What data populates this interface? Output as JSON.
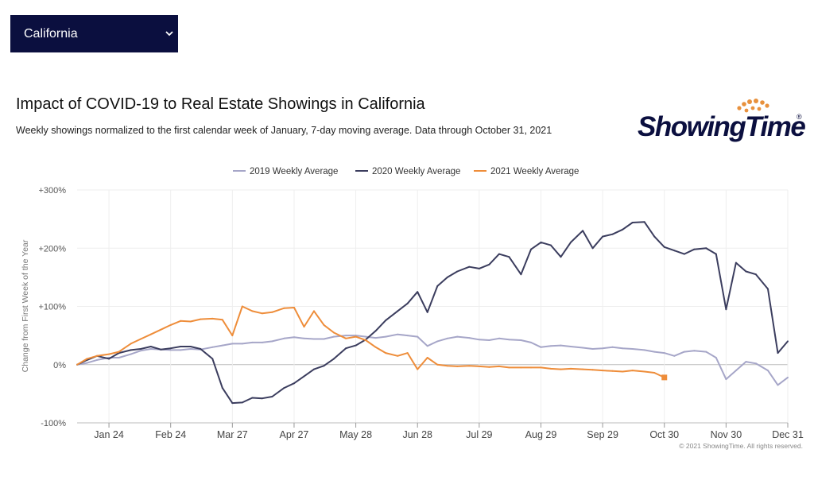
{
  "region_selector": {
    "selected": "California"
  },
  "header": {
    "title": "Impact of COVID-19 to Real Estate Showings in California",
    "subtitle": "Weekly showings normalized to the first calendar week of January, 7-day moving average. Data through October 31, 2021"
  },
  "logo": {
    "text": "ShowingTime",
    "registered": "®"
  },
  "copyright": "© 2021 ShowingTime. All rights reserved.",
  "colors": {
    "series_2019": "#a6a6c8",
    "series_2020": "#3b3d5e",
    "series_2021": "#ee8d3a",
    "selector_bg": "#0b0f3f",
    "logo_dots": "#e8913d"
  },
  "chart_data": {
    "type": "line",
    "xlabel": "",
    "ylabel": "Change from First Week of the Year",
    "x_domain": [
      "2021-01-08",
      "2021-12-31"
    ],
    "ylim": [
      -100,
      300
    ],
    "y_ticks": [
      -100,
      0,
      100,
      200,
      300
    ],
    "y_tick_labels": [
      "-100%",
      "0%",
      "+100%",
      "+200%",
      "+300%"
    ],
    "x_ticks": [
      "2021-01-24",
      "2021-02-24",
      "2021-03-27",
      "2021-04-27",
      "2021-05-28",
      "2021-06-28",
      "2021-07-29",
      "2021-08-29",
      "2021-09-29",
      "2021-10-30",
      "2021-11-30",
      "2021-12-31"
    ],
    "x_tick_labels": [
      "Jan 24",
      "Feb 24",
      "Mar 27",
      "Apr 27",
      "May 28",
      "Jun 28",
      "Jul 29",
      "Aug 29",
      "Sep 29",
      "Oct 30",
      "Nov 30",
      "Dec 31"
    ],
    "grid": "vertical",
    "legend_position": "top-center",
    "series": [
      {
        "name": "2019 Weekly Average",
        "color": "#a6a6c8",
        "points": [
          [
            "2021-01-08",
            0
          ],
          [
            "2021-01-13",
            3
          ],
          [
            "2021-01-18",
            8
          ],
          [
            "2021-01-24",
            12
          ],
          [
            "2021-01-29",
            12
          ],
          [
            "2021-02-04",
            18
          ],
          [
            "2021-02-09",
            24
          ],
          [
            "2021-02-14",
            27
          ],
          [
            "2021-02-19",
            26
          ],
          [
            "2021-02-24",
            25
          ],
          [
            "2021-03-01",
            25
          ],
          [
            "2021-03-06",
            27
          ],
          [
            "2021-03-11",
            26
          ],
          [
            "2021-03-17",
            30
          ],
          [
            "2021-03-22",
            33
          ],
          [
            "2021-03-27",
            36
          ],
          [
            "2021-04-01",
            36
          ],
          [
            "2021-04-06",
            38
          ],
          [
            "2021-04-11",
            38
          ],
          [
            "2021-04-16",
            40
          ],
          [
            "2021-04-22",
            45
          ],
          [
            "2021-04-27",
            47
          ],
          [
            "2021-05-02",
            45
          ],
          [
            "2021-05-07",
            44
          ],
          [
            "2021-05-12",
            44
          ],
          [
            "2021-05-17",
            48
          ],
          [
            "2021-05-23",
            50
          ],
          [
            "2021-05-28",
            50
          ],
          [
            "2021-06-02",
            48
          ],
          [
            "2021-06-07",
            46
          ],
          [
            "2021-06-12",
            48
          ],
          [
            "2021-06-18",
            52
          ],
          [
            "2021-06-23",
            50
          ],
          [
            "2021-06-28",
            48
          ],
          [
            "2021-07-03",
            32
          ],
          [
            "2021-07-08",
            40
          ],
          [
            "2021-07-13",
            45
          ],
          [
            "2021-07-18",
            48
          ],
          [
            "2021-07-24",
            46
          ],
          [
            "2021-07-29",
            43
          ],
          [
            "2021-08-03",
            42
          ],
          [
            "2021-08-08",
            45
          ],
          [
            "2021-08-13",
            43
          ],
          [
            "2021-08-19",
            42
          ],
          [
            "2021-08-24",
            38
          ],
          [
            "2021-08-29",
            30
          ],
          [
            "2021-09-03",
            32
          ],
          [
            "2021-09-08",
            33
          ],
          [
            "2021-09-13",
            31
          ],
          [
            "2021-09-19",
            29
          ],
          [
            "2021-09-24",
            27
          ],
          [
            "2021-09-29",
            28
          ],
          [
            "2021-10-04",
            30
          ],
          [
            "2021-10-09",
            28
          ],
          [
            "2021-10-14",
            27
          ],
          [
            "2021-10-20",
            25
          ],
          [
            "2021-10-25",
            22
          ],
          [
            "2021-10-30",
            20
          ],
          [
            "2021-11-04",
            15
          ],
          [
            "2021-11-09",
            22
          ],
          [
            "2021-11-14",
            24
          ],
          [
            "2021-11-20",
            22
          ],
          [
            "2021-11-25",
            12
          ],
          [
            "2021-11-30",
            -25
          ],
          [
            "2021-12-05",
            -10
          ],
          [
            "2021-12-10",
            5
          ],
          [
            "2021-12-15",
            2
          ],
          [
            "2021-12-21",
            -10
          ],
          [
            "2021-12-26",
            -35
          ],
          [
            "2021-12-31",
            -22
          ]
        ]
      },
      {
        "name": "2020 Weekly Average",
        "color": "#3b3d5e",
        "points": [
          [
            "2021-01-08",
            0
          ],
          [
            "2021-01-13",
            8
          ],
          [
            "2021-01-18",
            15
          ],
          [
            "2021-01-24",
            10
          ],
          [
            "2021-01-29",
            20
          ],
          [
            "2021-02-04",
            25
          ],
          [
            "2021-02-09",
            27
          ],
          [
            "2021-02-14",
            31
          ],
          [
            "2021-02-19",
            26
          ],
          [
            "2021-02-24",
            28
          ],
          [
            "2021-03-01",
            31
          ],
          [
            "2021-03-06",
            31
          ],
          [
            "2021-03-11",
            27
          ],
          [
            "2021-03-17",
            10
          ],
          [
            "2021-03-22",
            -40
          ],
          [
            "2021-03-27",
            -66
          ],
          [
            "2021-04-01",
            -65
          ],
          [
            "2021-04-06",
            -57
          ],
          [
            "2021-04-11",
            -58
          ],
          [
            "2021-04-16",
            -55
          ],
          [
            "2021-04-22",
            -40
          ],
          [
            "2021-04-27",
            -32
          ],
          [
            "2021-05-02",
            -20
          ],
          [
            "2021-05-07",
            -8
          ],
          [
            "2021-05-12",
            -2
          ],
          [
            "2021-05-17",
            10
          ],
          [
            "2021-05-23",
            28
          ],
          [
            "2021-05-28",
            33
          ],
          [
            "2021-06-02",
            43
          ],
          [
            "2021-06-07",
            58
          ],
          [
            "2021-06-12",
            76
          ],
          [
            "2021-06-18",
            92
          ],
          [
            "2021-06-23",
            105
          ],
          [
            "2021-06-28",
            125
          ],
          [
            "2021-07-03",
            90
          ],
          [
            "2021-07-08",
            135
          ],
          [
            "2021-07-13",
            150
          ],
          [
            "2021-07-18",
            160
          ],
          [
            "2021-07-24",
            168
          ],
          [
            "2021-07-29",
            165
          ],
          [
            "2021-08-03",
            172
          ],
          [
            "2021-08-08",
            190
          ],
          [
            "2021-08-13",
            185
          ],
          [
            "2021-08-19",
            155
          ],
          [
            "2021-08-24",
            198
          ],
          [
            "2021-08-29",
            210
          ],
          [
            "2021-09-03",
            205
          ],
          [
            "2021-09-08",
            185
          ],
          [
            "2021-09-13",
            210
          ],
          [
            "2021-09-19",
            230
          ],
          [
            "2021-09-24",
            200
          ],
          [
            "2021-09-29",
            220
          ],
          [
            "2021-10-04",
            224
          ],
          [
            "2021-10-09",
            232
          ],
          [
            "2021-10-14",
            244
          ],
          [
            "2021-10-20",
            245
          ],
          [
            "2021-10-25",
            220
          ],
          [
            "2021-10-30",
            202
          ],
          [
            "2021-11-04",
            196
          ],
          [
            "2021-11-09",
            190
          ],
          [
            "2021-11-14",
            198
          ],
          [
            "2021-11-20",
            200
          ],
          [
            "2021-11-25",
            190
          ],
          [
            "2021-11-30",
            95
          ],
          [
            "2021-12-05",
            175
          ],
          [
            "2021-12-10",
            160
          ],
          [
            "2021-12-15",
            155
          ],
          [
            "2021-12-21",
            130
          ],
          [
            "2021-12-26",
            20
          ],
          [
            "2021-12-31",
            40
          ]
        ]
      },
      {
        "name": "2021 Weekly Average",
        "color": "#ee8d3a",
        "points": [
          [
            "2021-01-08",
            0
          ],
          [
            "2021-01-13",
            10
          ],
          [
            "2021-01-18",
            15
          ],
          [
            "2021-01-24",
            18
          ],
          [
            "2021-01-29",
            22
          ],
          [
            "2021-02-04",
            36
          ],
          [
            "2021-02-09",
            44
          ],
          [
            "2021-02-14",
            52
          ],
          [
            "2021-02-19",
            60
          ],
          [
            "2021-02-24",
            68
          ],
          [
            "2021-03-01",
            75
          ],
          [
            "2021-03-06",
            74
          ],
          [
            "2021-03-11",
            78
          ],
          [
            "2021-03-17",
            79
          ],
          [
            "2021-03-22",
            77
          ],
          [
            "2021-03-27",
            50
          ],
          [
            "2021-04-01",
            100
          ],
          [
            "2021-04-06",
            92
          ],
          [
            "2021-04-11",
            88
          ],
          [
            "2021-04-16",
            90
          ],
          [
            "2021-04-22",
            97
          ],
          [
            "2021-04-27",
            98
          ],
          [
            "2021-05-02",
            65
          ],
          [
            "2021-05-07",
            92
          ],
          [
            "2021-05-12",
            68
          ],
          [
            "2021-05-17",
            55
          ],
          [
            "2021-05-23",
            45
          ],
          [
            "2021-05-28",
            48
          ],
          [
            "2021-06-02",
            42
          ],
          [
            "2021-06-07",
            30
          ],
          [
            "2021-06-12",
            20
          ],
          [
            "2021-06-18",
            15
          ],
          [
            "2021-06-23",
            20
          ],
          [
            "2021-06-28",
            -8
          ],
          [
            "2021-07-03",
            12
          ],
          [
            "2021-07-08",
            0
          ],
          [
            "2021-07-13",
            -2
          ],
          [
            "2021-07-18",
            -3
          ],
          [
            "2021-07-24",
            -2
          ],
          [
            "2021-07-29",
            -3
          ],
          [
            "2021-08-03",
            -4
          ],
          [
            "2021-08-08",
            -3
          ],
          [
            "2021-08-13",
            -5
          ],
          [
            "2021-08-19",
            -5
          ],
          [
            "2021-08-24",
            -5
          ],
          [
            "2021-08-29",
            -5
          ],
          [
            "2021-09-03",
            -7
          ],
          [
            "2021-09-08",
            -8
          ],
          [
            "2021-09-13",
            -7
          ],
          [
            "2021-09-19",
            -8
          ],
          [
            "2021-09-24",
            -9
          ],
          [
            "2021-09-29",
            -10
          ],
          [
            "2021-10-04",
            -11
          ],
          [
            "2021-10-09",
            -12
          ],
          [
            "2021-10-14",
            -10
          ],
          [
            "2021-10-20",
            -12
          ],
          [
            "2021-10-25",
            -14
          ],
          [
            "2021-10-30",
            -22
          ]
        ]
      }
    ]
  }
}
